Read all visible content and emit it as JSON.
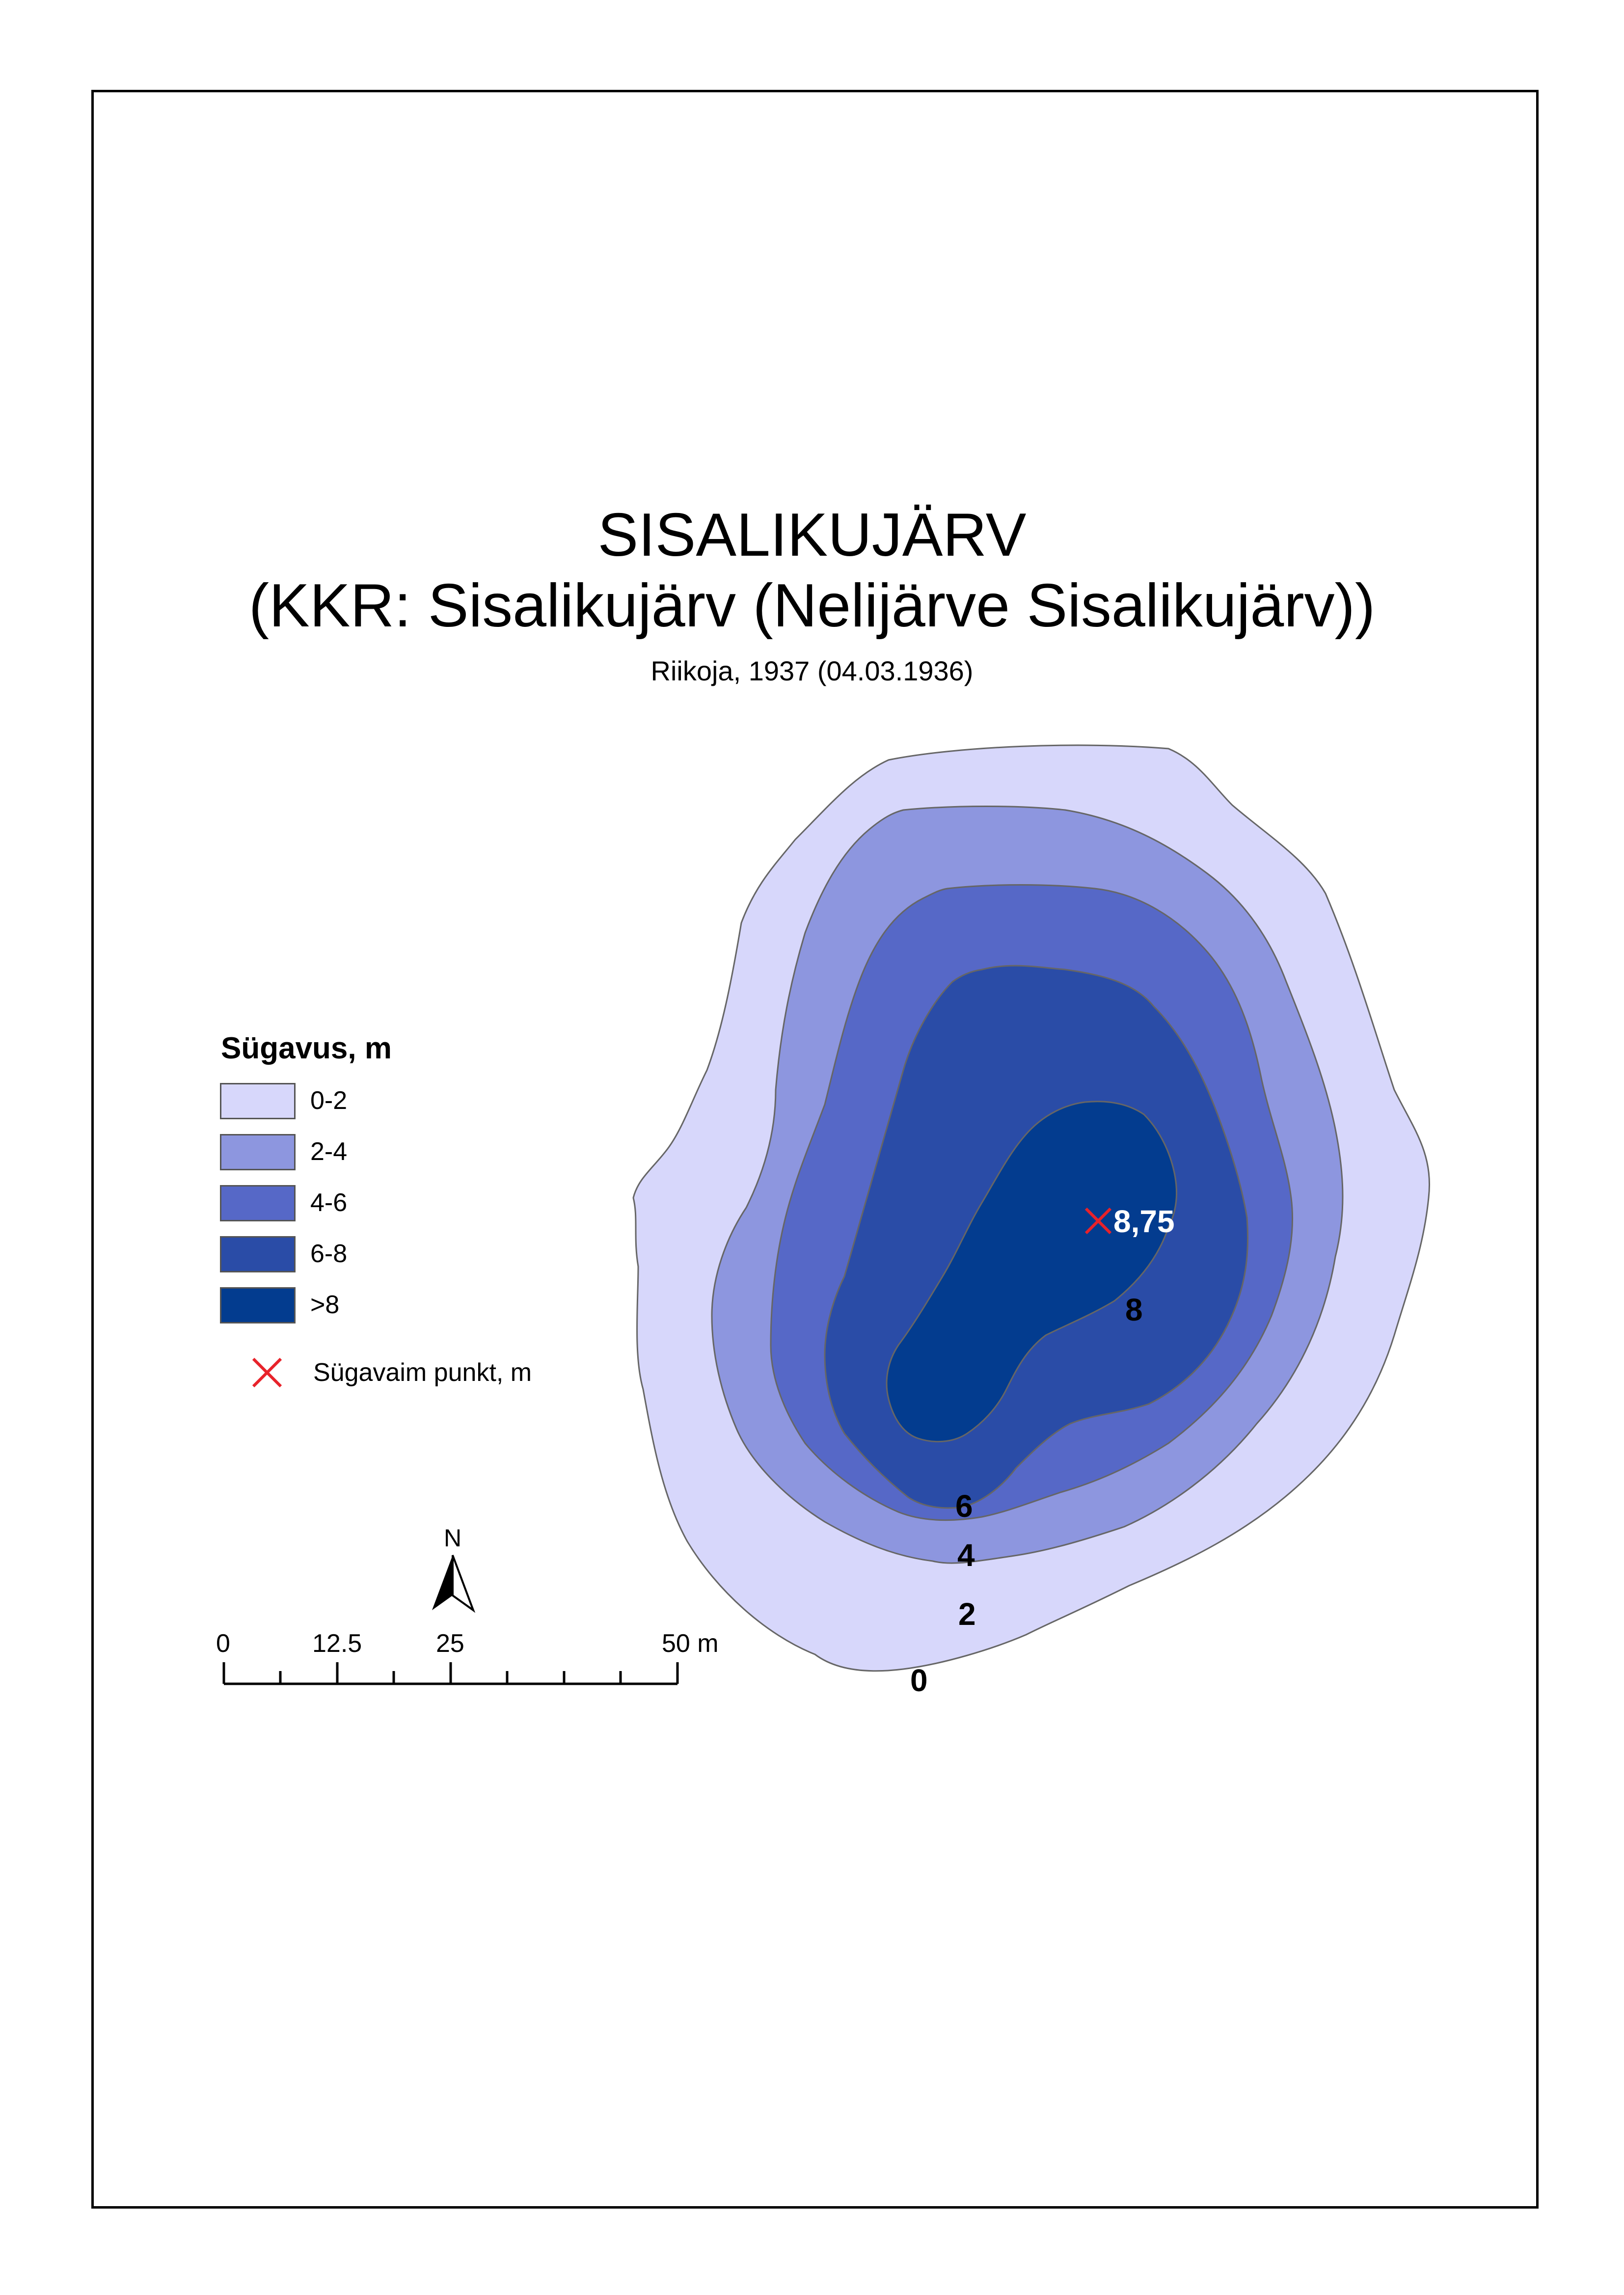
{
  "title": "SISALIKUJÄRV",
  "subtitle_main": "(KKR: Sisalikujärv (Nelijärve Sisalikujärv))",
  "source_note": "Riikoja, 1937 (04.03.1936)",
  "legend": {
    "title": "Sügavus, m",
    "classes": [
      {
        "label": "0-2",
        "color": "#d7d7fb"
      },
      {
        "label": "2-4",
        "color": "#8d96df"
      },
      {
        "label": "4-6",
        "color": "#5668c7"
      },
      {
        "label": "6-8",
        "color": "#2a4ca7"
      },
      {
        "label": ">8",
        "color": "#033c8f"
      }
    ],
    "point_label": "Sügavaim punkt, m",
    "point_color": "#e8222a"
  },
  "map": {
    "contour_labels": [
      "0",
      "2",
      "4",
      "6",
      "8"
    ],
    "deepest_point": "8,75"
  },
  "scale_bar": {
    "labels": [
      "0",
      "12.5",
      "25",
      "50 m"
    ]
  },
  "north_arrow": {
    "label": "N"
  }
}
